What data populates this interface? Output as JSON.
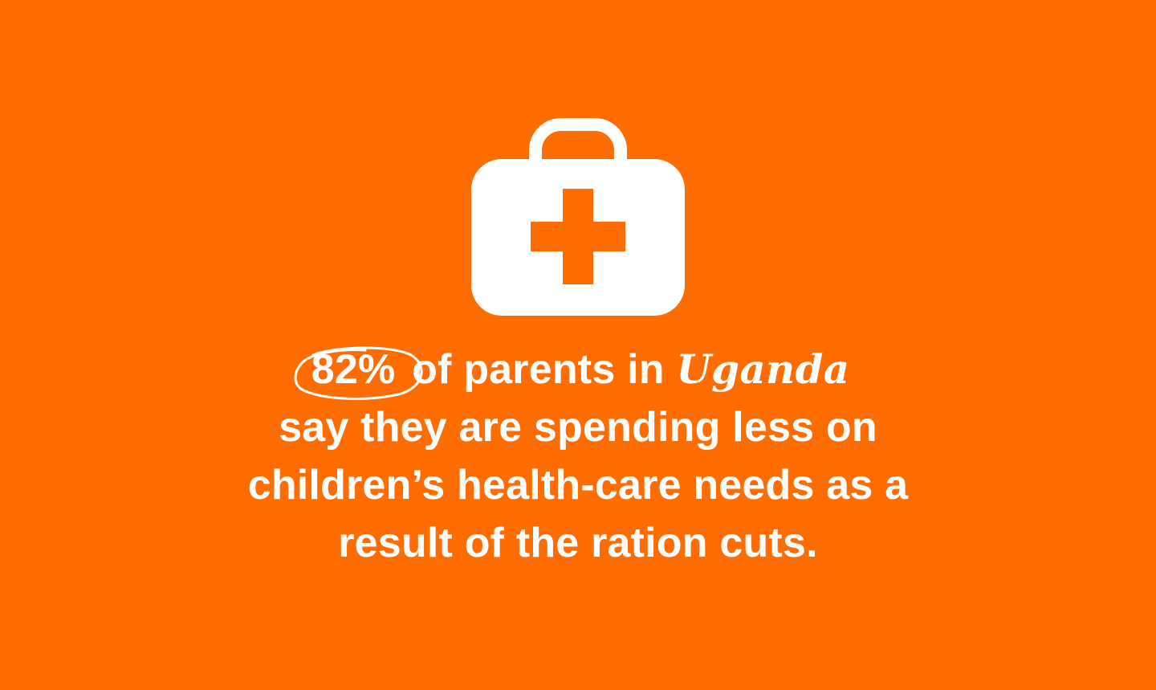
{
  "background_color": "#ff6c00",
  "text_color": "#ffffff",
  "icon": "first-aid-kit-icon",
  "stat": {
    "value": "82%",
    "prefix_text": "of parents in",
    "country": "Uganda"
  },
  "body_lines": [
    "say they are spending less on",
    "children’s health-care needs as a",
    "result of the ration cuts."
  ]
}
